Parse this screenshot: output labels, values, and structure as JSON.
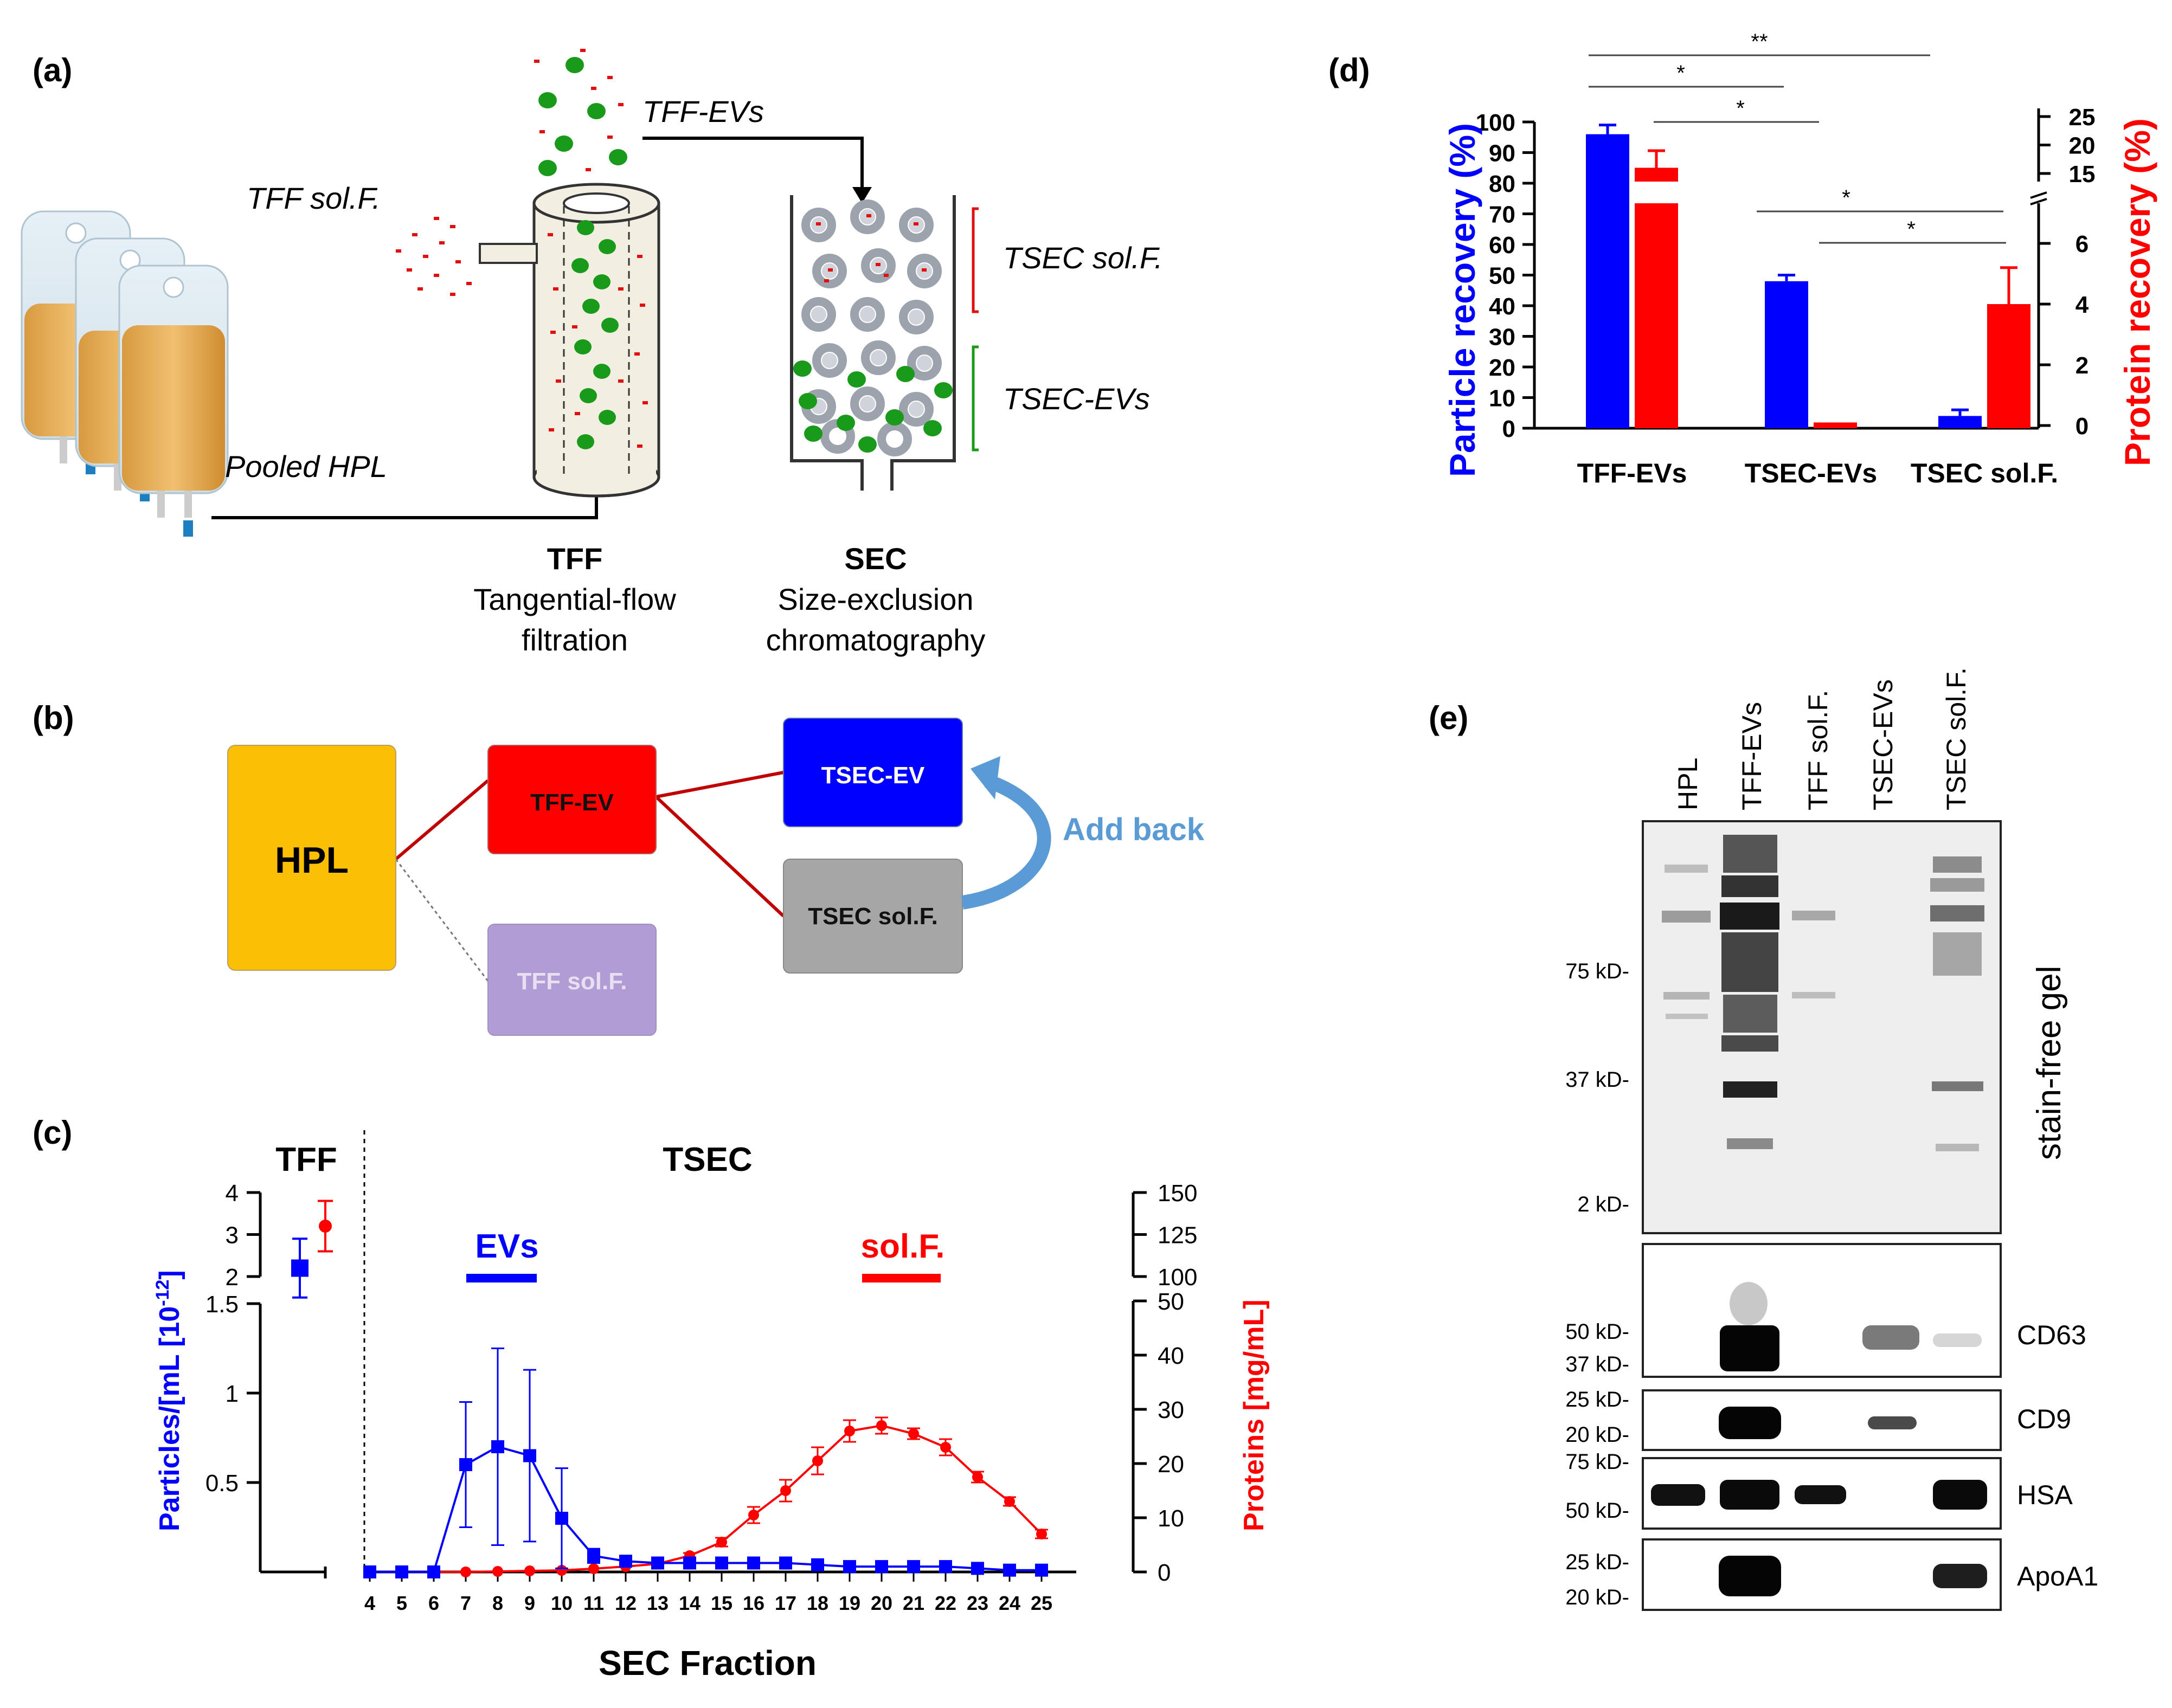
{
  "panel_labels": {
    "a": "(a)",
    "b": "(b)",
    "c": "(c)",
    "d": "(d)",
    "e": "(e)"
  },
  "panel_a": {
    "tff_solf_label": "TFF sol.F.",
    "tff_evs_label": "TFF-EVs",
    "tsec_solf_label": "TSEC sol.F.",
    "tsec_evs_label": "TSEC-EVs",
    "pooled_hpl_label": "Pooled HPL",
    "tff_title": "TFF",
    "tff_line1": "Tangential-flow",
    "tff_line2": "filtration",
    "sec_title": "SEC",
    "sec_line1": "Size-exclusion",
    "sec_line2": "chromatography",
    "colors": {
      "ev": "#1a9a1a",
      "protein": "#e01010",
      "bag": "#e8b060"
    }
  },
  "panel_b": {
    "hpl": "HPL",
    "tff_ev": "TFF-EV",
    "tff_solf": "TFF sol.F.",
    "tsec_ev": "TSEC-EV",
    "tsec_solf": "TSEC sol.F.",
    "add_back": "Add back",
    "colors": {
      "hpl": "#fbbf05",
      "tff_ev": "#ff0000",
      "tff_solf": "#b19cd5",
      "tsec_ev": "#0000ff",
      "tsec_solf": "#a6a6a6",
      "add_back": "#5b9bd5",
      "link": "#c00000"
    }
  },
  "panel_c": {
    "tff_title": "TFF",
    "tsec_title": "TSEC",
    "evs_label": "EVs",
    "solf_label": "sol.F.",
    "y_left_label": "Particles/[mL  [10",
    "y_left_exp": "-12",
    "y_left_close": "]",
    "y_right_label": "Proteins  [mg/mL]",
    "x_label": "SEC  Fraction",
    "left_ticks_lower": [
      "0.5",
      "1",
      "1.5"
    ],
    "left_ticks_upper": [
      "2",
      "3",
      "4"
    ],
    "right_ticks_lower": [
      "0",
      "10",
      "20",
      "30",
      "40",
      "50"
    ],
    "right_ticks_upper": [
      "100",
      "125",
      "150"
    ]
  },
  "chart_data": [
    {
      "type": "line",
      "title": "TSEC",
      "xlabel": "SEC  Fraction",
      "ylabel_left": "Particles/[mL  [10-12]",
      "ylabel_right": "Proteins  [mg/mL]",
      "x": [
        4,
        5,
        6,
        7,
        8,
        9,
        10,
        11,
        12,
        13,
        14,
        15,
        16,
        17,
        18,
        19,
        20,
        21,
        22,
        23,
        24,
        25
      ],
      "ylim_left": [
        0,
        1.5
      ],
      "ylim_right": [
        0,
        50
      ],
      "series": [
        {
          "name": "Particles",
          "axis": "left",
          "color": "#0000ff",
          "marker": "square",
          "values": [
            0,
            0,
            0,
            0.6,
            0.7,
            0.65,
            0.3,
            0.09,
            0.06,
            0.05,
            0.05,
            0.05,
            0.05,
            0.05,
            0.04,
            0.03,
            0.03,
            0.03,
            0.03,
            0.02,
            0.01,
            0.01
          ],
          "error": [
            0,
            0,
            0,
            0.35,
            0.55,
            0.48,
            0.28,
            0.04,
            0.02,
            0.02,
            0.02,
            0.02,
            0.02,
            0.02,
            0.01,
            0.01,
            0.01,
            0.01,
            0.01,
            0.01,
            0.01,
            0.01
          ]
        },
        {
          "name": "Proteins",
          "axis": "right",
          "color": "#ff0000",
          "marker": "circle",
          "values": [
            0,
            0,
            0,
            0,
            0.1,
            0.2,
            0.3,
            0.6,
            1,
            1.5,
            3,
            5.5,
            10.5,
            15,
            20.5,
            26,
            27,
            25.5,
            23,
            17.5,
            13,
            7
          ],
          "error": [
            0,
            0,
            0,
            0,
            0.1,
            0.1,
            0.1,
            0.1,
            0.2,
            0.3,
            0.5,
            0.8,
            1.5,
            2,
            2.5,
            2,
            1.5,
            1,
            1.5,
            1,
            0.8,
            0.8
          ]
        }
      ]
    },
    {
      "type": "scatter",
      "title": "TFF",
      "ylim_left": [
        2,
        4
      ],
      "ylim_right": [
        100,
        150
      ],
      "series": [
        {
          "name": "Particles",
          "axis": "left",
          "color": "#0000ff",
          "values": [
            2.2
          ],
          "error": [
            0.7
          ]
        },
        {
          "name": "Proteins",
          "axis": "right",
          "color": "#ff0000",
          "values": [
            130
          ],
          "error": [
            15
          ]
        }
      ]
    },
    {
      "type": "bar",
      "categories": [
        "TFF-EVs",
        "TSEC-EVs",
        "TSEC sol.F."
      ],
      "ylabel_left": "Particle recovery (%)",
      "ylabel_right": "Protein recovery (%)",
      "ylim_left": [
        0,
        100
      ],
      "ylim_right_lower": [
        0,
        7
      ],
      "ylim_right_upper": [
        15,
        25
      ],
      "series": [
        {
          "name": "Particle recovery",
          "axis": "left",
          "color": "#0000ff",
          "values": [
            96,
            48,
            4
          ],
          "error": [
            3,
            2,
            2
          ]
        },
        {
          "name": "Protein recovery",
          "axis": "right",
          "color": "#ff0000",
          "values": [
            16,
            0.1,
            4
          ],
          "error": [
            3,
            0,
            1.2
          ]
        }
      ],
      "significance": [
        {
          "from": "TFF-EVs",
          "to": "TSEC sol.F.",
          "label": "**"
        },
        {
          "from": "TFF-EVs",
          "to": "TSEC-EVs",
          "label": "*"
        },
        {
          "from": "TFF-EVs",
          "to": "TSEC-EVs",
          "label": "*"
        },
        {
          "from": "TSEC-EVs",
          "to": "TSEC sol.F.",
          "label": "*"
        },
        {
          "from": "TSEC-EVs",
          "to": "TSEC sol.F.",
          "label": "*"
        }
      ]
    }
  ],
  "panel_d": {
    "y_left_label": "Particle recovery (%)",
    "y_right_label": "Protein recovery (%)",
    "left_ticks": [
      "0",
      "10",
      "20",
      "30",
      "40",
      "50",
      "60",
      "70",
      "80",
      "90",
      "100"
    ],
    "right_ticks_lower": [
      "0",
      "2",
      "4",
      "6"
    ],
    "right_ticks_upper": [
      "15",
      "20",
      "25"
    ],
    "categories": [
      "TFF-EVs",
      "TSEC-EVs",
      "TSEC sol.F."
    ],
    "sig_labels": [
      "**",
      "*",
      "*",
      "*",
      "*"
    ]
  },
  "panel_e": {
    "lanes": [
      "HPL",
      "TFF-EVs",
      "TFF sol.F.",
      "TSEC-EVs",
      "TSEC sol.F."
    ],
    "gel_label": "stain-free gel",
    "gel_markers": [
      "75 kD-",
      "37 kD-",
      "2 kD-"
    ],
    "blots": [
      {
        "name": "CD63",
        "markers": [
          "50 kD-",
          "37 kD-"
        ]
      },
      {
        "name": "CD9",
        "markers": [
          "25 kD-",
          "20 kD-"
        ]
      },
      {
        "name": "HSA",
        "markers": [
          "75 kD-",
          "50 kD-"
        ]
      },
      {
        "name": "ApoA1",
        "markers": [
          "25 kD-",
          "20 kD-"
        ]
      }
    ]
  }
}
